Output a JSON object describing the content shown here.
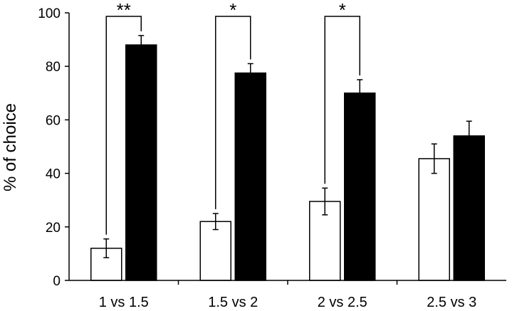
{
  "chart_data": {
    "type": "bar",
    "categories": [
      "1 vs 1.5",
      "1.5 vs 2",
      "2 vs 2.5",
      "2.5 vs 3"
    ],
    "series": [
      {
        "values": [
          12,
          22,
          29.5,
          45.5
        ],
        "errors": [
          3.5,
          3,
          5,
          5.5
        ],
        "fill": "#ffffff"
      },
      {
        "values": [
          88,
          77.5,
          70,
          54
        ],
        "errors": [
          3.5,
          3.5,
          5,
          5.5
        ],
        "fill": "#000000"
      }
    ],
    "ylabel": "% of choice",
    "xlabel": "",
    "ylim": [
      0,
      100
    ],
    "yticks": [
      0,
      20,
      40,
      60,
      80,
      100
    ],
    "grid": false,
    "annotations": [
      {
        "category": 0,
        "text": "**"
      },
      {
        "category": 1,
        "text": "*"
      },
      {
        "category": 2,
        "text": "*"
      }
    ]
  }
}
